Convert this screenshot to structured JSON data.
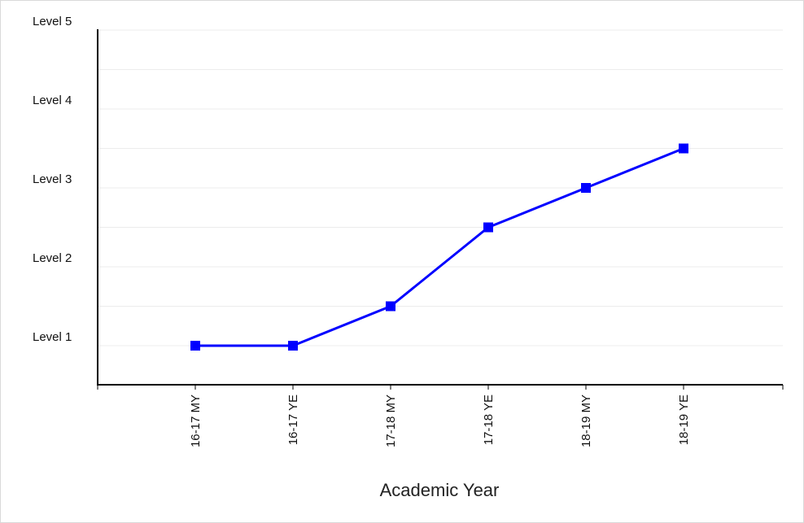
{
  "chart_data": {
    "type": "line",
    "title": "",
    "xlabel": "Academic Year",
    "ylabel": "",
    "categories": [
      "16-17 MY",
      "16-17 YE",
      "17-18 MY",
      "17-18 YE",
      "18-19 MY",
      "18-19 YE"
    ],
    "series": [
      {
        "values": [
          1,
          1,
          1.5,
          2.5,
          3,
          3.5
        ],
        "color": "#0000ff",
        "marker": "square"
      }
    ],
    "yticks": [
      {
        "value": 1,
        "label": "Level 1"
      },
      {
        "value": 2,
        "label": "Level 2"
      },
      {
        "value": 3,
        "label": "Level 3"
      },
      {
        "value": 4,
        "label": "Level 4"
      },
      {
        "value": 5,
        "label": "Level 5"
      }
    ],
    "ylim": [
      0.5,
      5
    ],
    "grid": true,
    "gridlines_at": [
      1,
      1.5,
      2,
      2.5,
      3,
      3.5,
      4,
      4.5,
      5
    ],
    "legend": "none"
  }
}
